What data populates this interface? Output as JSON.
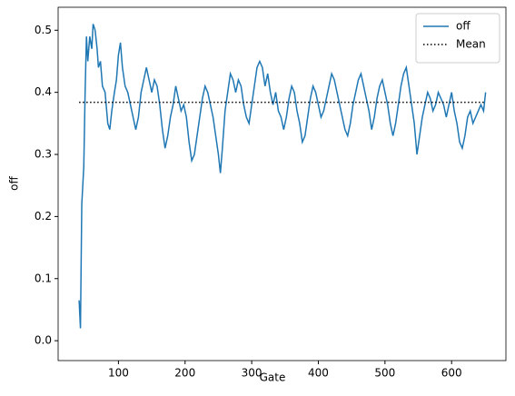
{
  "chart_data": {
    "type": "line",
    "xlabel": "Gate",
    "ylabel": "off",
    "xlim": [
      9.5,
      681.5
    ],
    "ylim": [
      -0.032,
      0.537
    ],
    "xticks": [
      100,
      200,
      300,
      400,
      500,
      600
    ],
    "yticks": [
      {
        "value": 0,
        "label": "0.0"
      },
      0.1,
      0.2,
      0.3,
      0.4,
      0.5
    ],
    "legend": "upper right",
    "series": [
      {
        "name": "off",
        "color": "#1f77b4",
        "style": "solid",
        "x": [
          41,
          43,
          45,
          48,
          50,
          52,
          54,
          57,
          60,
          62,
          65,
          68,
          70,
          73,
          76,
          80,
          84,
          87,
          90,
          94,
          97,
          100,
          103,
          106,
          110,
          114,
          118,
          122,
          126,
          130,
          134,
          138,
          142,
          146,
          150,
          154,
          158,
          162,
          166,
          170,
          174,
          178,
          182,
          186,
          190,
          194,
          198,
          202,
          206,
          210,
          214,
          218,
          222,
          226,
          230,
          234,
          238,
          242,
          246,
          250,
          253,
          256,
          260,
          264,
          268,
          272,
          276,
          280,
          284,
          288,
          292,
          296,
          300,
          304,
          308,
          312,
          316,
          320,
          324,
          328,
          332,
          336,
          340,
          344,
          348,
          352,
          356,
          360,
          364,
          368,
          372,
          376,
          380,
          384,
          388,
          392,
          396,
          400,
          404,
          408,
          412,
          416,
          420,
          424,
          428,
          432,
          436,
          440,
          444,
          448,
          452,
          456,
          460,
          464,
          468,
          472,
          476,
          480,
          484,
          488,
          492,
          496,
          500,
          504,
          508,
          512,
          516,
          520,
          524,
          528,
          532,
          536,
          540,
          544,
          548,
          552,
          556,
          560,
          564,
          568,
          572,
          576,
          580,
          584,
          588,
          592,
          596,
          600,
          604,
          608,
          612,
          616,
          620,
          624,
          628,
          632,
          636,
          640,
          644,
          648,
          651
        ],
        "values": [
          0.065,
          0.02,
          0.22,
          0.28,
          0.4,
          0.49,
          0.45,
          0.49,
          0.47,
          0.51,
          0.5,
          0.47,
          0.44,
          0.45,
          0.41,
          0.4,
          0.35,
          0.34,
          0.37,
          0.4,
          0.42,
          0.46,
          0.48,
          0.44,
          0.41,
          0.4,
          0.38,
          0.36,
          0.34,
          0.36,
          0.4,
          0.42,
          0.44,
          0.42,
          0.4,
          0.42,
          0.41,
          0.38,
          0.34,
          0.31,
          0.33,
          0.36,
          0.38,
          0.41,
          0.39,
          0.37,
          0.38,
          0.36,
          0.32,
          0.29,
          0.3,
          0.33,
          0.36,
          0.39,
          0.41,
          0.4,
          0.38,
          0.36,
          0.33,
          0.3,
          0.27,
          0.31,
          0.37,
          0.4,
          0.43,
          0.42,
          0.4,
          0.42,
          0.41,
          0.38,
          0.36,
          0.35,
          0.38,
          0.41,
          0.44,
          0.45,
          0.44,
          0.41,
          0.43,
          0.4,
          0.38,
          0.4,
          0.37,
          0.36,
          0.34,
          0.36,
          0.39,
          0.41,
          0.4,
          0.37,
          0.35,
          0.32,
          0.33,
          0.36,
          0.39,
          0.41,
          0.4,
          0.38,
          0.36,
          0.37,
          0.39,
          0.41,
          0.43,
          0.42,
          0.4,
          0.38,
          0.36,
          0.34,
          0.33,
          0.35,
          0.38,
          0.4,
          0.42,
          0.43,
          0.41,
          0.39,
          0.37,
          0.34,
          0.36,
          0.39,
          0.41,
          0.42,
          0.4,
          0.38,
          0.35,
          0.33,
          0.35,
          0.38,
          0.41,
          0.43,
          0.44,
          0.41,
          0.38,
          0.35,
          0.3,
          0.33,
          0.36,
          0.38,
          0.4,
          0.39,
          0.37,
          0.38,
          0.4,
          0.39,
          0.38,
          0.36,
          0.38,
          0.4,
          0.37,
          0.35,
          0.32,
          0.31,
          0.33,
          0.36,
          0.37,
          0.35,
          0.36,
          0.37,
          0.38,
          0.37,
          0.4
        ]
      },
      {
        "name": "Mean",
        "color": "#000000",
        "style": "dotted",
        "x": [
          41,
          651
        ],
        "values": [
          0.384,
          0.384
        ]
      }
    ]
  }
}
